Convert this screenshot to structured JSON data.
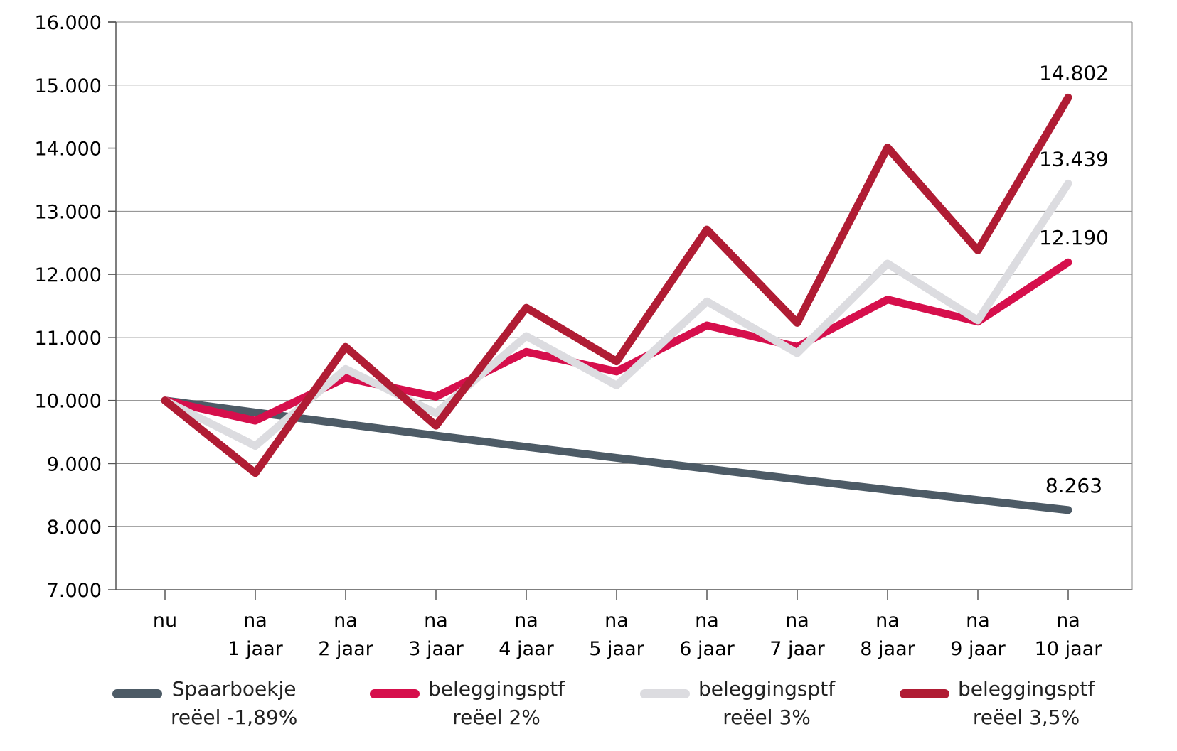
{
  "chart_data": {
    "type": "line",
    "title": "",
    "xlabel": "",
    "ylabel": "",
    "categories": [
      [
        "nu",
        ""
      ],
      [
        "na",
        "1 jaar"
      ],
      [
        "na",
        "2 jaar"
      ],
      [
        "na",
        "3 jaar"
      ],
      [
        "na",
        "4 jaar"
      ],
      [
        "na",
        "5 jaar"
      ],
      [
        "na",
        "6 jaar"
      ],
      [
        "na",
        "7 jaar"
      ],
      [
        "na",
        "8 jaar"
      ],
      [
        "na",
        "9 jaar"
      ],
      [
        "na",
        "10 jaar"
      ]
    ],
    "ylim": [
      7000,
      16000
    ],
    "yticks": [
      7000,
      8000,
      9000,
      10000,
      11000,
      12000,
      13000,
      14000,
      15000,
      16000
    ],
    "ytick_labels": [
      "7.000",
      "8.000",
      "9.000",
      "10.000",
      "11.000",
      "12.000",
      "13.000",
      "14.000",
      "15.000",
      "16.000"
    ],
    "grid": "horizontal",
    "legend_position": "bottom",
    "series": [
      {
        "name_lines": [
          "Spaarboekje",
          "reëel -1,89%"
        ],
        "color": "#4d5b66",
        "values": [
          10000,
          9811,
          9626,
          9444,
          9265,
          9090,
          8918,
          8750,
          8584,
          8422,
          8263
        ],
        "end_label": "8.263"
      },
      {
        "name_lines": [
          "beleggingsptf",
          "reëel 2%"
        ],
        "color": "#d60f4c",
        "values": [
          10000,
          9680,
          10360,
          10060,
          10770,
          10460,
          11190,
          10850,
          11600,
          11250,
          12190
        ],
        "end_label": "12.190"
      },
      {
        "name_lines": [
          "beleggingsptf",
          "reëel 3%"
        ],
        "color": "#dcdce0",
        "values": [
          10000,
          9280,
          10500,
          9800,
          11020,
          10240,
          11570,
          10750,
          12170,
          11270,
          13439
        ],
        "end_label": "13.439"
      },
      {
        "name_lines": [
          "beleggingsptf",
          "reëel 3,5%"
        ],
        "color": "#b01c34",
        "values": [
          10000,
          8850,
          10850,
          9600,
          11470,
          10620,
          12710,
          11230,
          14010,
          12380,
          14802
        ],
        "end_label": "14.802"
      }
    ]
  }
}
